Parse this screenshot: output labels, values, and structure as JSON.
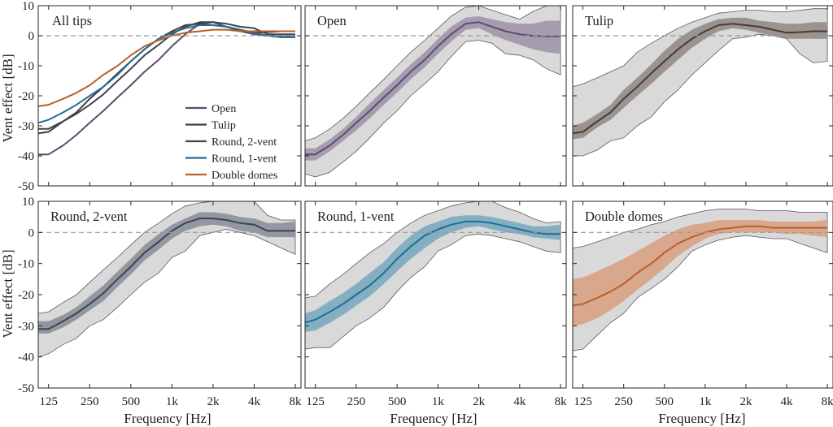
{
  "chart_data": {
    "type": "area",
    "x": [
      105,
      125,
      160,
      200,
      250,
      315,
      400,
      500,
      630,
      800,
      1000,
      1250,
      1600,
      2000,
      2500,
      3150,
      4000,
      5000,
      6300,
      8000
    ],
    "xscale": "log",
    "xlim": [
      105,
      8800
    ],
    "xticks": [
      125,
      250,
      500,
      1000,
      2000,
      4000,
      8000
    ],
    "xtick_labels": [
      "125",
      "250",
      "500",
      "1k",
      "2k",
      "4k",
      "8k"
    ],
    "ylim": [
      -50,
      10
    ],
    "yticks": [
      -50,
      -40,
      -30,
      -20,
      -10,
      0,
      10
    ],
    "ytick_labels": [
      "-50",
      "-40",
      "-30",
      "-20",
      "-10",
      "0",
      "10"
    ],
    "xlabel": "Frequency [Hz]",
    "ylabel": "Vent effect [dB]",
    "reference_line": 0,
    "colors": {
      "open": "#5e4b6e",
      "tulip": "#4a3a34",
      "round2": "#3b4452",
      "round1": "#1f6e92",
      "double": "#b95f2c",
      "range_band": "#d9d9d9",
      "reference": "#999999"
    },
    "overview": {
      "title": "All tips",
      "legend_placement": "center-right",
      "series": [
        {
          "name": "Open",
          "key": "open"
        },
        {
          "name": "Tulip",
          "key": "tulip"
        },
        {
          "name": "Round, 2-vent",
          "key": "round2"
        },
        {
          "name": "Round, 1-vent",
          "key": "round1"
        },
        {
          "name": "Double domes",
          "key": "double"
        }
      ]
    },
    "panels": [
      {
        "title": "Open",
        "key": "open",
        "mean": [
          -39.5,
          -39.5,
          -36.5,
          -33,
          -29,
          -25,
          -20.5,
          -16.5,
          -12,
          -8,
          -3.5,
          0.5,
          4,
          4.5,
          3,
          1.5,
          0.5,
          0,
          -0.2,
          -0.2
        ],
        "inner_low": [
          -41.5,
          -41.5,
          -38.5,
          -35,
          -31.5,
          -27.5,
          -23,
          -19,
          -14.5,
          -10.5,
          -6,
          -2,
          2,
          2.5,
          0.5,
          -1.5,
          -3,
          -4.5,
          -5.5,
          -6
        ],
        "inner_high": [
          -37.5,
          -37.5,
          -34.5,
          -31,
          -27,
          -22.5,
          -18,
          -14,
          -9.5,
          -5.5,
          -1,
          3,
          6,
          6.5,
          5.5,
          4.5,
          4,
          4,
          5,
          5
        ],
        "outer_low": [
          -46,
          -47,
          -45.5,
          -42,
          -38.5,
          -34,
          -29,
          -25,
          -20,
          -16,
          -12,
          -7,
          -2,
          -1.5,
          -2.5,
          -6,
          -6.5,
          -8,
          -11,
          -13
        ],
        "outer_high": [
          -35,
          -34,
          -31,
          -27.5,
          -23.5,
          -19,
          -14.5,
          -10,
          -5.5,
          -1.5,
          2.5,
          6.5,
          9.5,
          10,
          8.5,
          7,
          5.5,
          8,
          10,
          10
        ]
      },
      {
        "title": "Tulip",
        "key": "tulip",
        "mean": [
          -32.5,
          -32,
          -28.5,
          -25.5,
          -21,
          -17,
          -12.5,
          -8.5,
          -4.5,
          -1,
          1.5,
          3.5,
          4,
          3.5,
          3,
          2,
          1,
          1.2,
          1.5,
          1.5
        ],
        "inner_low": [
          -34.5,
          -34,
          -30.5,
          -28,
          -24,
          -20,
          -16,
          -12,
          -8,
          -4,
          -1,
          1.5,
          2.5,
          2,
          1,
          0,
          -1,
          -1,
          -1,
          -1
        ],
        "inner_high": [
          -30,
          -29,
          -26,
          -23,
          -18,
          -14,
          -9.5,
          -5,
          -1,
          2,
          4,
          5.5,
          6,
          6,
          5,
          4.5,
          4,
          4,
          4.5,
          4.5
        ],
        "outer_low": [
          -40,
          -40,
          -38,
          -35,
          -34,
          -30,
          -27,
          -22,
          -18,
          -13,
          -9,
          -5,
          -1,
          -0.5,
          0.5,
          0,
          -1,
          -6,
          -9,
          -8.5
        ],
        "outer_high": [
          -17,
          -16,
          -14,
          -12,
          -10,
          -5.5,
          -2.5,
          0,
          2.5,
          4.5,
          6,
          7.5,
          8,
          8.5,
          8.5,
          8,
          8,
          8.5,
          9,
          9
        ]
      },
      {
        "title": "Round, 2-vent",
        "key": "round2",
        "mean": [
          -31,
          -31,
          -28.5,
          -26,
          -23,
          -19.5,
          -15,
          -11,
          -6.5,
          -3,
          0.5,
          3,
          4.5,
          4.5,
          4,
          3,
          2.5,
          0.5,
          0.5,
          0.5
        ],
        "inner_low": [
          -32.5,
          -32.5,
          -30.5,
          -28,
          -25,
          -22,
          -17.5,
          -13.5,
          -9,
          -5.5,
          -2,
          0.5,
          2,
          2.5,
          2,
          0.5,
          0,
          -1.5,
          -1.5,
          -1.5
        ],
        "inner_high": [
          -28.5,
          -28.5,
          -26.5,
          -24,
          -20.5,
          -17,
          -12.5,
          -8.5,
          -4,
          -0.5,
          2.5,
          4.5,
          6.5,
          6.5,
          6,
          5,
          4.5,
          3,
          3,
          3.5
        ],
        "outer_low": [
          -40,
          -39,
          -36,
          -34,
          -30,
          -28,
          -24,
          -20,
          -16,
          -13,
          -8,
          -6,
          -1,
          0,
          1,
          0,
          -1,
          -3,
          -5,
          -7
        ],
        "outer_high": [
          -26,
          -25.5,
          -22.5,
          -20,
          -16,
          -12,
          -8,
          -4,
          0,
          3,
          6,
          8.5,
          9.5,
          10,
          10,
          10,
          10,
          5.5,
          4,
          4
        ]
      },
      {
        "title": "Round, 1-vent",
        "key": "round1",
        "mean": [
          -29,
          -28,
          -25.5,
          -23,
          -20,
          -17,
          -13,
          -8.5,
          -4.5,
          -1,
          1,
          2.5,
          3.5,
          3.5,
          3,
          2,
          1,
          0,
          -0.5,
          -0.5
        ],
        "inner_low": [
          -32,
          -31.5,
          -29,
          -26.5,
          -23.5,
          -20.5,
          -16.5,
          -12.5,
          -8.5,
          -5,
          -2,
          0,
          1.5,
          2,
          1,
          0,
          -0.5,
          -1.5,
          -2,
          -2.5
        ],
        "inner_high": [
          -26,
          -25,
          -22,
          -19.5,
          -16.5,
          -13,
          -9.5,
          -5,
          -1,
          2,
          3.5,
          5,
          5.5,
          5.5,
          5,
          4,
          3,
          2,
          2,
          2.5
        ],
        "outer_low": [
          -37.5,
          -37,
          -37,
          -33.5,
          -30,
          -27.5,
          -24,
          -19,
          -14.5,
          -11,
          -6,
          -4,
          -1,
          -0.5,
          -1,
          -2,
          -3,
          -4.5,
          -6,
          -6.5
        ],
        "outer_high": [
          -21,
          -20.5,
          -16.5,
          -13.5,
          -10,
          -6.5,
          -3.5,
          0,
          3,
          5.5,
          7,
          8.5,
          9.5,
          10,
          10,
          8,
          6.5,
          4.5,
          3,
          3.5
        ]
      },
      {
        "title": "Double domes",
        "key": "double",
        "mean": [
          -23.5,
          -23,
          -21,
          -19,
          -16.5,
          -13,
          -10,
          -6.5,
          -3.5,
          -1.5,
          0,
          1,
          1.5,
          2,
          2,
          1.5,
          1.5,
          1.5,
          1.5,
          1.5
        ],
        "inner_low": [
          -30,
          -29.5,
          -27.5,
          -25,
          -22,
          -18.5,
          -15,
          -11.5,
          -7.5,
          -4.5,
          -2,
          -0.5,
          0,
          0,
          0,
          0,
          -0.5,
          -0.5,
          -1,
          -1.5
        ],
        "inner_high": [
          -15,
          -14.5,
          -12.5,
          -10.5,
          -8.5,
          -6,
          -3.5,
          -1,
          1,
          2.5,
          3,
          4,
          4,
          4,
          4,
          3.5,
          3.5,
          3.5,
          3.5,
          4
        ],
        "outer_low": [
          -38,
          -37.5,
          -33,
          -29,
          -26,
          -21,
          -18,
          -15,
          -11,
          -6,
          -4,
          -2.5,
          -1.5,
          -1,
          -1.5,
          -2,
          -2,
          -3.5,
          -5,
          -6.5
        ],
        "outer_high": [
          -5,
          -4.5,
          -3,
          -1.5,
          0,
          1,
          2.5,
          3.5,
          5,
          6,
          7,
          7.5,
          7.5,
          7.5,
          7,
          7,
          7,
          6.5,
          6.5,
          6.5
        ]
      }
    ]
  }
}
